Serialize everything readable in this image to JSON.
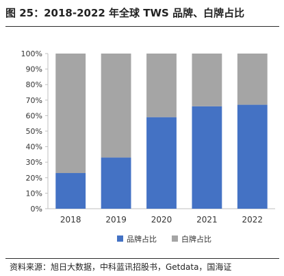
{
  "figure": {
    "title": "图 25：2018-2022 年全球 TWS 品牌、白牌占比",
    "source": "资料来源：旭日大数据，中科蓝讯招股书，Getdata，国海证"
  },
  "chart_data": {
    "type": "bar",
    "stacked": true,
    "title": "",
    "xlabel": "",
    "ylabel": "",
    "categories": [
      "2018",
      "2019",
      "2020",
      "2021",
      "2022"
    ],
    "series": [
      {
        "name": "品牌占比",
        "color": "#4472c4",
        "values": [
          23,
          33,
          59,
          66,
          67
        ]
      },
      {
        "name": "白牌占比",
        "color": "#a5a5a5",
        "values": [
          77,
          67,
          41,
          34,
          33
        ]
      }
    ],
    "ylim": [
      0,
      100
    ],
    "yticks": [
      "0%",
      "10%",
      "20%",
      "30%",
      "40%",
      "50%",
      "60%",
      "70%",
      "80%",
      "90%",
      "100%"
    ],
    "grid": false,
    "legend_position": "bottom"
  }
}
